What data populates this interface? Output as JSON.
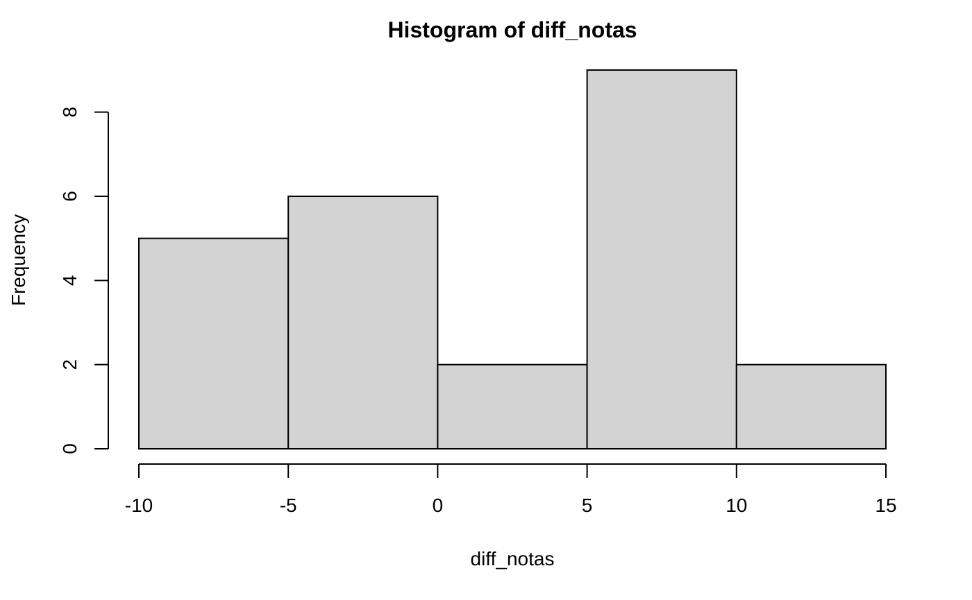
{
  "chart_data": {
    "type": "bar",
    "title": "Histogram of diff_notas",
    "xlabel": "diff_notas",
    "ylabel": "Frequency",
    "bins": [
      {
        "from": -10,
        "to": -5,
        "count": 5
      },
      {
        "from": -5,
        "to": 0,
        "count": 6
      },
      {
        "from": 0,
        "to": 5,
        "count": 2
      },
      {
        "from": 5,
        "to": 10,
        "count": 9
      },
      {
        "from": 10,
        "to": 15,
        "count": 2
      }
    ],
    "xticks": [
      -10,
      -5,
      0,
      5,
      10,
      15
    ],
    "yticks": [
      0,
      2,
      4,
      6,
      8
    ],
    "xlim": [
      -10,
      15
    ],
    "ylim": [
      0,
      9
    ],
    "grid": false,
    "bar_color": "#d3d3d3",
    "edge_color": "#000000"
  }
}
